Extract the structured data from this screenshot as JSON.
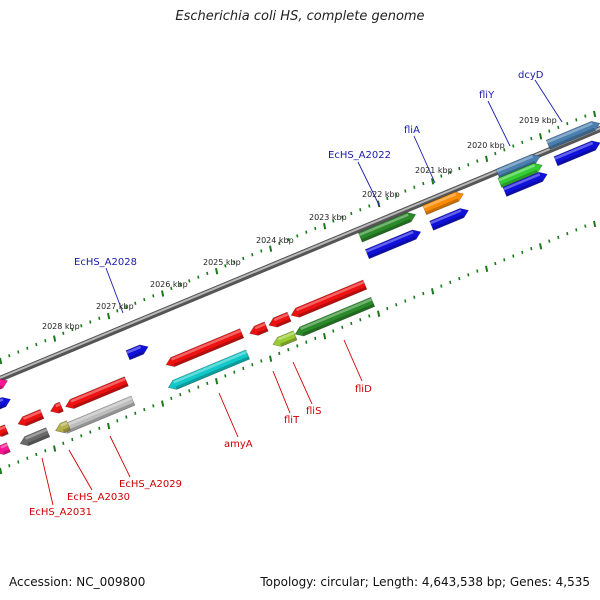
{
  "title": "Escherichia coli HS, complete genome",
  "footer": {
    "accession": "Accession: NC_009800",
    "summary": "Topology: circular; Length: 4,643,538 bp; Genes: 4,535"
  },
  "kbp_labels": [
    "2028 kbp",
    "2027 kbp",
    "2026 kbp",
    "2025 kbp",
    "2024 kbp",
    "2023 kbp",
    "2022 kbp",
    "2021 kbp",
    "2020 kbp",
    "2019 kbp"
  ],
  "gene_labels_blue": [
    "EcHS_A2028",
    "EcHS_A2022",
    "fliA",
    "fliY",
    "dcyD"
  ],
  "gene_labels_red": [
    "EcHS_A2031",
    "EcHS_A2030",
    "EcHS_A2029",
    "amyA",
    "fliT",
    "fliS",
    "fliD"
  ],
  "colors": {
    "label_blue": "#1a1aaa",
    "label_red": "#cc0000",
    "tick_green": "#1a7a1a",
    "backbone": "#888888"
  }
}
